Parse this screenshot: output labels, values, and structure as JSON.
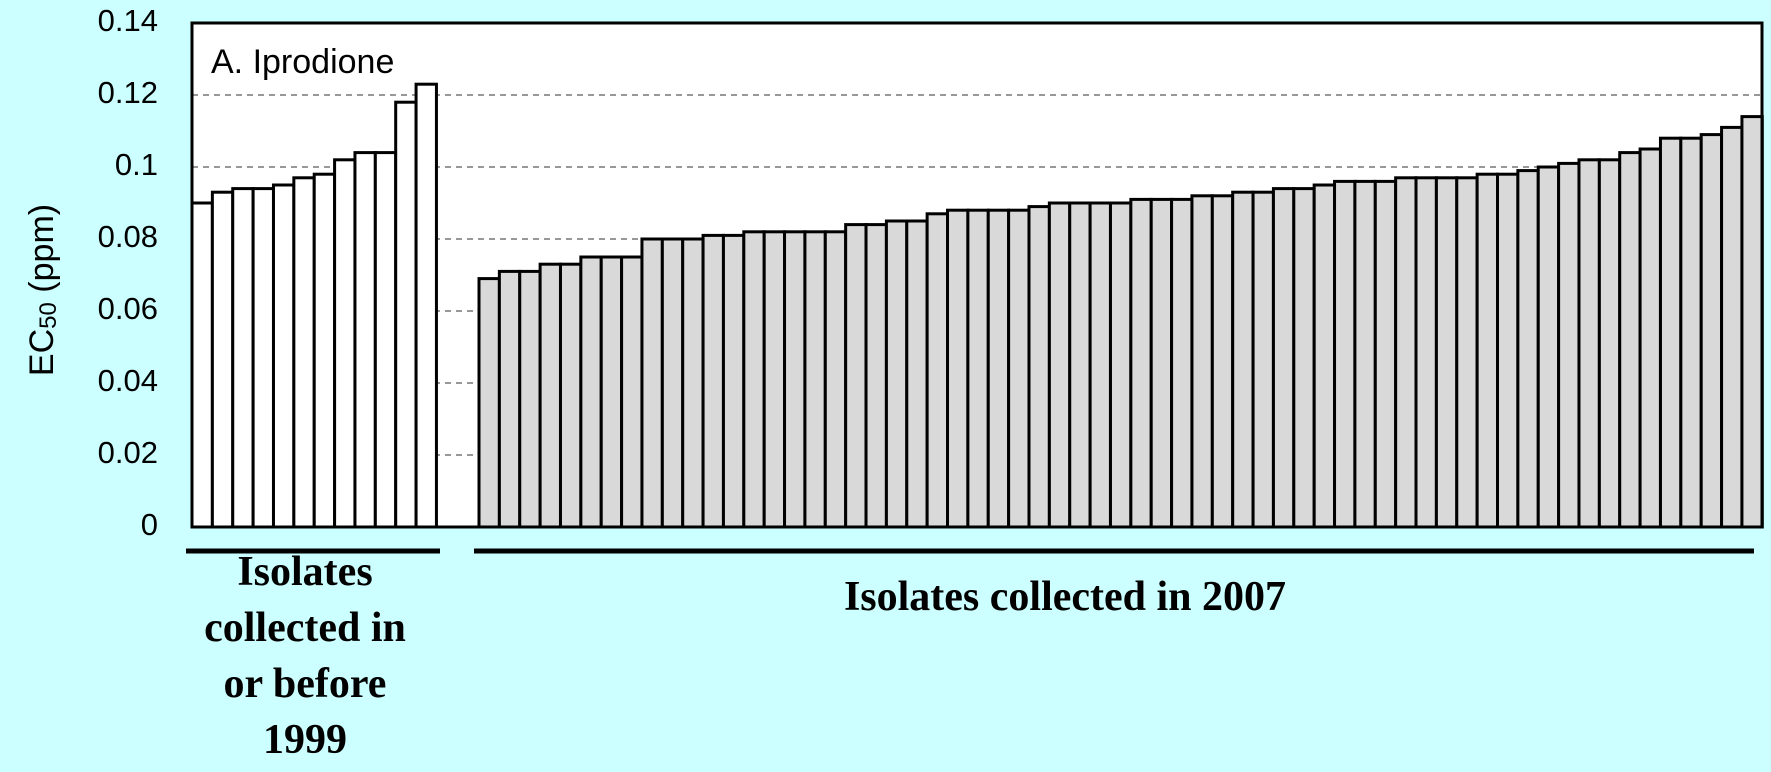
{
  "chart_data": {
    "type": "bar",
    "title": "A. Iprodione",
    "ylabel": [
      "EC",
      "50",
      " (ppm)"
    ],
    "ylim": [
      0,
      0.14
    ],
    "yticks": [
      0,
      0.02,
      0.04,
      0.06,
      0.08,
      0.1,
      0.12,
      0.14
    ],
    "grid": true,
    "groups": [
      {
        "label_lines": [
          "Isolates",
          "collected in",
          "or before",
          "1999"
        ],
        "color": "#ffffff",
        "values": [
          0.09,
          0.093,
          0.094,
          0.094,
          0.095,
          0.097,
          0.098,
          0.102,
          0.104,
          0.104,
          0.118,
          0.123
        ]
      },
      {
        "label_lines": [
          "Isolates collected in 2007"
        ],
        "color": "#d9d9d9",
        "values": [
          0.069,
          0.071,
          0.071,
          0.073,
          0.073,
          0.075,
          0.075,
          0.075,
          0.08,
          0.08,
          0.08,
          0.081,
          0.081,
          0.082,
          0.082,
          0.082,
          0.082,
          0.082,
          0.084,
          0.084,
          0.085,
          0.085,
          0.087,
          0.088,
          0.088,
          0.088,
          0.088,
          0.089,
          0.09,
          0.09,
          0.09,
          0.09,
          0.091,
          0.091,
          0.091,
          0.092,
          0.092,
          0.093,
          0.093,
          0.094,
          0.094,
          0.095,
          0.096,
          0.096,
          0.096,
          0.097,
          0.097,
          0.097,
          0.097,
          0.098,
          0.098,
          0.099,
          0.1,
          0.101,
          0.102,
          0.102,
          0.104,
          0.105,
          0.108,
          0.108,
          0.109,
          0.111,
          0.114
        ]
      }
    ]
  }
}
